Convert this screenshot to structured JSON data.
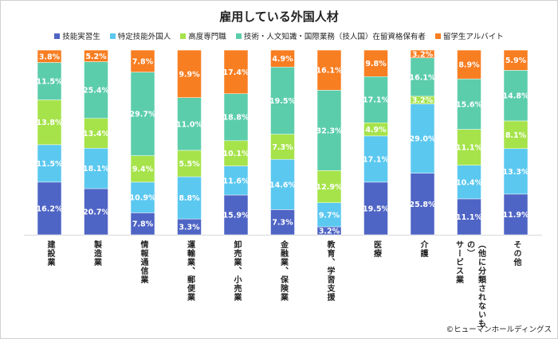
{
  "chart_data": {
    "type": "bar",
    "stacked": "100%",
    "title": "雇用している外国人材",
    "legend_placement": "top",
    "categories": [
      "建設業",
      "製造業",
      "情報通信業",
      "運輸業、郵便業",
      "卸売業、小売業",
      "金融業、保険業",
      "教育、学習支援",
      "医療",
      "介護",
      "（他に分類されないもの）\nサービス業",
      "その他"
    ],
    "series": [
      {
        "name": "技能実習生",
        "color": "#4f65c5",
        "values": [
          16.2,
          20.7,
          7.8,
          3.3,
          15.9,
          7.3,
          3.2,
          19.5,
          25.8,
          11.1,
          11.9
        ]
      },
      {
        "name": "特定技能外国人",
        "color": "#5bc8f0",
        "values": [
          11.5,
          18.1,
          10.9,
          8.8,
          11.6,
          14.6,
          9.7,
          17.1,
          29.0,
          10.4,
          13.3
        ]
      },
      {
        "name": "高度専門職",
        "color": "#a6e34b",
        "values": [
          13.8,
          13.4,
          9.4,
          5.5,
          10.1,
          7.3,
          12.9,
          4.9,
          3.2,
          11.1,
          8.1
        ]
      },
      {
        "name": "技術・人文知識・国際業務（技人国）在留資格保有者",
        "color": "#5ccdab",
        "values": [
          11.5,
          25.4,
          29.7,
          11.0,
          18.8,
          19.5,
          32.3,
          17.1,
          16.1,
          15.6,
          14.8
        ]
      },
      {
        "name": "留学生アルバイト",
        "color": "#f87e22",
        "values": [
          3.8,
          5.2,
          7.8,
          9.9,
          17.4,
          4.9,
          16.1,
          9.8,
          3.2,
          8.9,
          5.9
        ]
      }
    ],
    "value_suffix": "%",
    "grid": false
  },
  "credit": "©ヒューマンホールディングス"
}
